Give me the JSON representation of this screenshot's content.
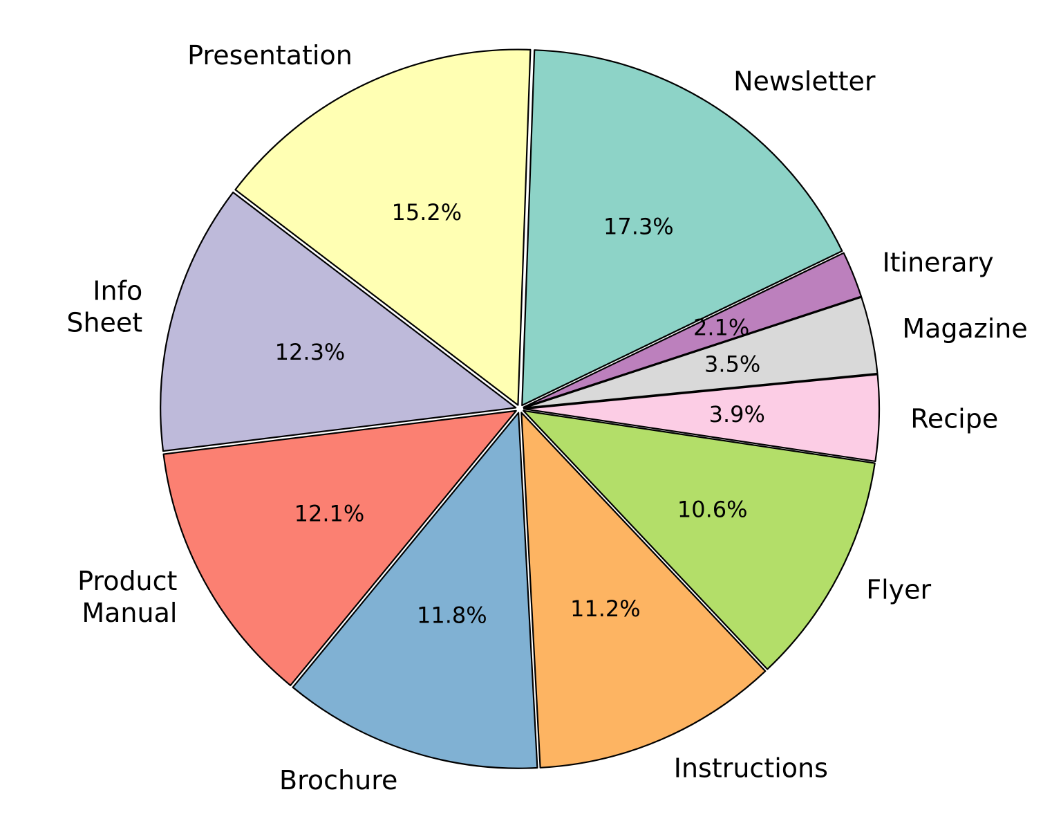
{
  "chart_data": {
    "type": "pie",
    "title": "",
    "start_angle_deg": 88,
    "direction": "clockwise",
    "slices": [
      {
        "label": [
          "Newsletter"
        ],
        "value": 17.3,
        "pct_label": "17.3%",
        "color": "#8dd3c7"
      },
      {
        "label": [
          "Itinerary"
        ],
        "value": 2.1,
        "pct_label": "2.1%",
        "color": "#bc80bd"
      },
      {
        "label": [
          "Magazine"
        ],
        "value": 3.5,
        "pct_label": "3.5%",
        "color": "#d9d9d9"
      },
      {
        "label": [
          "Recipe"
        ],
        "value": 3.9,
        "pct_label": "3.9%",
        "color": "#fccde5"
      },
      {
        "label": [
          "Flyer"
        ],
        "value": 10.6,
        "pct_label": "10.6%",
        "color": "#b3de69"
      },
      {
        "label": [
          "Instructions"
        ],
        "value": 11.2,
        "pct_label": "11.2%",
        "color": "#fdb462"
      },
      {
        "label": [
          "Brochure"
        ],
        "value": 11.8,
        "pct_label": "11.8%",
        "color": "#80b1d3"
      },
      {
        "label": [
          "Product",
          "Manual"
        ],
        "value": 12.1,
        "pct_label": "12.1%",
        "color": "#fb8072"
      },
      {
        "label": [
          "Info",
          "Sheet"
        ],
        "value": 12.3,
        "pct_label": "12.3%",
        "color": "#bebada"
      },
      {
        "label": [
          "Presentation"
        ],
        "value": 15.2,
        "pct_label": "15.2%",
        "color": "#ffffb3"
      }
    ]
  }
}
